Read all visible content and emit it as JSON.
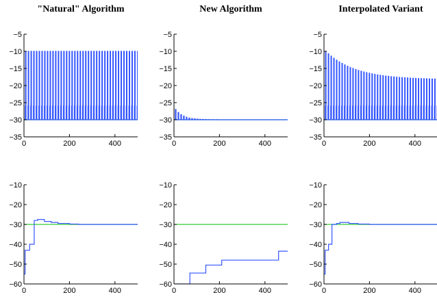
{
  "chart_data": [
    {
      "type": "line",
      "column_title": "\"Natural\" Algorithm",
      "xlim": [
        0,
        500
      ],
      "ylim": [
        -35,
        -5
      ],
      "xticks": [
        0,
        200,
        400
      ],
      "yticks": [
        -5,
        -10,
        -15,
        -20,
        -25,
        -30,
        -35
      ],
      "series": [
        {
          "color": "#33cc33",
          "x": [
            0,
            500
          ],
          "y": [
            -30,
            -30
          ]
        },
        {
          "color": "#3355ff",
          "pattern": "square-oscillation",
          "period": 12,
          "x_start": 0,
          "x_end": 500,
          "low": [
            -30,
            -30
          ],
          "high": [
            -10,
            -10
          ],
          "shoulder": -26
        }
      ]
    },
    {
      "type": "line",
      "column_title": "New Algorithm",
      "xlim": [
        0,
        500
      ],
      "ylim": [
        -35,
        -5
      ],
      "xticks": [
        0,
        200,
        400
      ],
      "yticks": [
        -5,
        -10,
        -15,
        -20,
        -25,
        -30,
        -35
      ],
      "series": [
        {
          "color": "#33cc33",
          "x": [
            0,
            500
          ],
          "y": [
            -30,
            -30
          ]
        },
        {
          "color": "#3355ff",
          "pattern": "square-oscillation",
          "period": 12,
          "x_start": 0,
          "x_end": 500,
          "low": [
            -30,
            -30
          ],
          "high": [
            -27,
            -30
          ],
          "decay": 35,
          "shoulder": null
        }
      ]
    },
    {
      "type": "line",
      "column_title": "Interpolated Variant",
      "xlim": [
        0,
        500
      ],
      "ylim": [
        -35,
        -5
      ],
      "xticks": [
        0,
        200,
        400
      ],
      "yticks": [
        -5,
        -10,
        -15,
        -20,
        -25,
        -30,
        -35
      ],
      "series": [
        {
          "color": "#33cc33",
          "x": [
            0,
            500
          ],
          "y": [
            -30,
            -30
          ]
        },
        {
          "color": "#3355ff",
          "pattern": "square-oscillation",
          "period": 12,
          "x_start": 0,
          "x_end": 500,
          "low": [
            -30,
            -30
          ],
          "high": [
            -10,
            -18.3
          ],
          "decay": 130,
          "shoulder": -26
        }
      ]
    },
    {
      "type": "line",
      "xlim": [
        0,
        500
      ],
      "ylim": [
        -60,
        -10
      ],
      "xticks": [
        0,
        200,
        400
      ],
      "yticks": [
        -10,
        -20,
        -30,
        -40,
        -50,
        -60
      ],
      "series": [
        {
          "color": "#33cc33",
          "x": [
            0,
            500
          ],
          "y": [
            -30,
            -30
          ]
        },
        {
          "color": "#3355ff",
          "pattern": "step",
          "x": [
            0,
            5,
            5,
            25,
            25,
            45,
            45,
            60,
            60,
            90,
            90,
            120,
            120,
            150,
            150,
            200,
            200,
            240,
            240,
            500
          ],
          "y": [
            -55,
            -55,
            -43,
            -43,
            -40,
            -40,
            -28,
            -28,
            -27.5,
            -27.5,
            -28.5,
            -28.5,
            -29,
            -29,
            -29.5,
            -29.5,
            -29.8,
            -29.8,
            -30,
            -30
          ]
        }
      ]
    },
    {
      "type": "line",
      "xlim": [
        0,
        500
      ],
      "ylim": [
        -60,
        -10
      ],
      "xticks": [
        0,
        200,
        400
      ],
      "yticks": [
        -10,
        -20,
        -30,
        -40,
        -50,
        -60
      ],
      "series": [
        {
          "color": "#33cc33",
          "x": [
            0,
            500
          ],
          "y": [
            -30,
            -30
          ]
        },
        {
          "color": "#3355ff",
          "pattern": "step",
          "x": [
            0,
            70,
            70,
            140,
            140,
            210,
            210,
            460,
            460,
            500
          ],
          "y": [
            -60,
            -60,
            -54.5,
            -54.5,
            -50.5,
            -50.5,
            -48,
            -48,
            -43.5,
            -43.5
          ]
        }
      ]
    },
    {
      "type": "line",
      "xlim": [
        0,
        500
      ],
      "ylim": [
        -60,
        -10
      ],
      "xticks": [
        0,
        200,
        400
      ],
      "yticks": [
        -10,
        -20,
        -30,
        -40,
        -50,
        -60
      ],
      "series": [
        {
          "color": "#33cc33",
          "x": [
            0,
            500
          ],
          "y": [
            -30,
            -30
          ]
        },
        {
          "color": "#3355ff",
          "pattern": "step",
          "x": [
            0,
            5,
            5,
            20,
            20,
            35,
            35,
            55,
            55,
            70,
            70,
            110,
            110,
            150,
            150,
            200,
            200,
            500
          ],
          "y": [
            -55,
            -55,
            -43,
            -43,
            -40,
            -40,
            -30,
            -30,
            -29.5,
            -29.5,
            -29,
            -29,
            -29.5,
            -29.5,
            -29.8,
            -29.8,
            -30,
            -30
          ]
        }
      ]
    }
  ]
}
